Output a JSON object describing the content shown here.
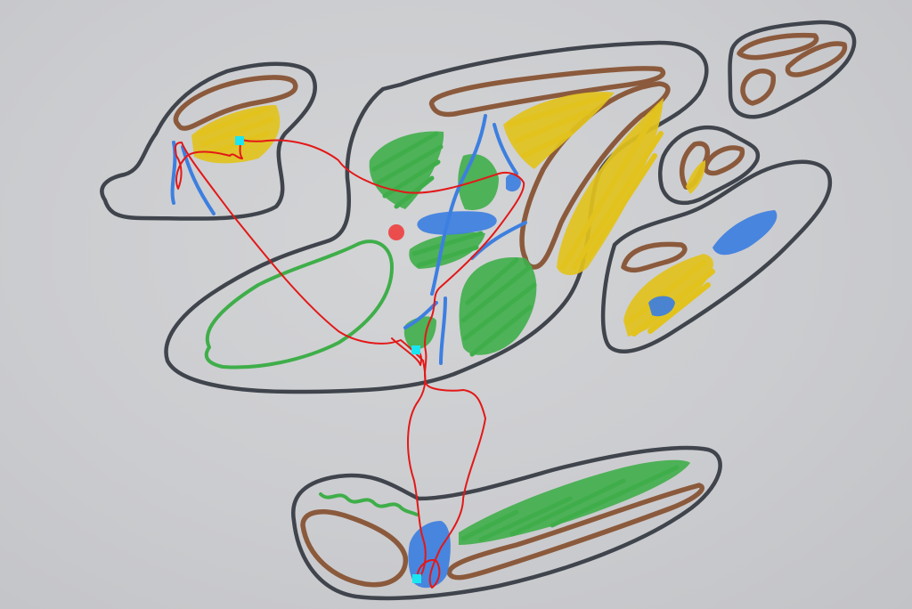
{
  "colors": {
    "outline": "#40444c",
    "brown": "#8b5a3c",
    "green": "#3fae4a",
    "blue": "#3d7fe0",
    "yellow": "#e2c21c",
    "path": "#e31818",
    "waypoint": "#19e6f0",
    "current_position": "#ee3a3a"
  },
  "map": {
    "description_icons": [
      "waypoint-marker",
      "current-position-marker"
    ]
  }
}
